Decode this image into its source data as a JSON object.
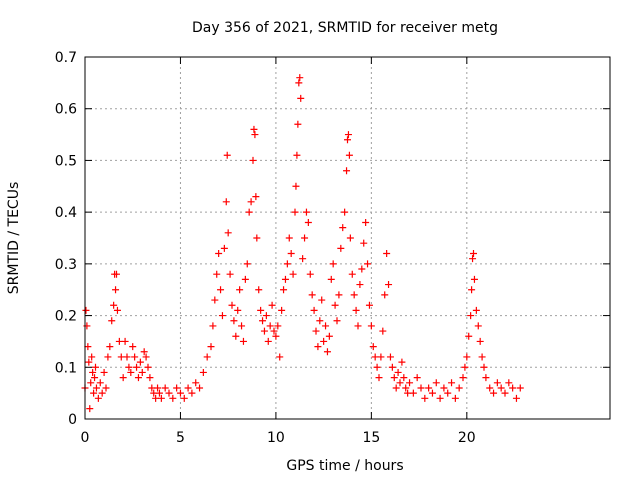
{
  "chart_data": {
    "type": "scatter",
    "title": "Day 356 of 2021, SRMTID for receiver metg",
    "xlabel": "GPS time / hours",
    "ylabel": "SRMTID / TECUs",
    "xlim": [
      0,
      27.5
    ],
    "ylim": [
      0,
      0.7
    ],
    "xticks": [
      0,
      5,
      10,
      15,
      20
    ],
    "xtick_labels": [
      "0",
      "5",
      "10",
      "15",
      "20"
    ],
    "yticks": [
      0,
      0.1,
      0.2,
      0.3,
      0.4,
      0.5,
      0.6,
      0.7
    ],
    "ytick_labels": [
      "0",
      "0.1",
      "0.2",
      "0.3",
      "0.4",
      "0.5",
      "0.6",
      "0.7"
    ],
    "grid": true,
    "marker": "+",
    "series": [
      {
        "name": "SRMTID",
        "color": "#ff0000",
        "points": [
          [
            0.0,
            0.06
          ],
          [
            0.05,
            0.21
          ],
          [
            0.1,
            0.18
          ],
          [
            0.15,
            0.14
          ],
          [
            0.2,
            0.11
          ],
          [
            0.25,
            0.02
          ],
          [
            0.3,
            0.07
          ],
          [
            0.35,
            0.12
          ],
          [
            0.4,
            0.09
          ],
          [
            0.45,
            0.05
          ],
          [
            0.5,
            0.08
          ],
          [
            0.55,
            0.1
          ],
          [
            0.6,
            0.06
          ],
          [
            0.7,
            0.04
          ],
          [
            0.8,
            0.07
          ],
          [
            0.9,
            0.05
          ],
          [
            1.0,
            0.09
          ],
          [
            1.1,
            0.06
          ],
          [
            1.2,
            0.12
          ],
          [
            1.3,
            0.14
          ],
          [
            1.4,
            0.19
          ],
          [
            1.5,
            0.22
          ],
          [
            1.55,
            0.28
          ],
          [
            1.6,
            0.25
          ],
          [
            1.65,
            0.28
          ],
          [
            1.7,
            0.21
          ],
          [
            1.8,
            0.15
          ],
          [
            1.9,
            0.12
          ],
          [
            2.0,
            0.08
          ],
          [
            2.1,
            0.15
          ],
          [
            2.2,
            0.12
          ],
          [
            2.3,
            0.1
          ],
          [
            2.4,
            0.09
          ],
          [
            2.5,
            0.14
          ],
          [
            2.6,
            0.12
          ],
          [
            2.7,
            0.1
          ],
          [
            2.8,
            0.08
          ],
          [
            2.9,
            0.11
          ],
          [
            3.0,
            0.09
          ],
          [
            3.1,
            0.13
          ],
          [
            3.2,
            0.12
          ],
          [
            3.3,
            0.1
          ],
          [
            3.4,
            0.08
          ],
          [
            3.5,
            0.06
          ],
          [
            3.6,
            0.05
          ],
          [
            3.7,
            0.04
          ],
          [
            3.8,
            0.06
          ],
          [
            3.9,
            0.05
          ],
          [
            4.0,
            0.04
          ],
          [
            4.2,
            0.06
          ],
          [
            4.4,
            0.05
          ],
          [
            4.6,
            0.04
          ],
          [
            4.8,
            0.06
          ],
          [
            5.0,
            0.05
          ],
          [
            5.2,
            0.04
          ],
          [
            5.4,
            0.06
          ],
          [
            5.6,
            0.05
          ],
          [
            5.8,
            0.07
          ],
          [
            6.0,
            0.06
          ],
          [
            6.2,
            0.09
          ],
          [
            6.4,
            0.12
          ],
          [
            6.6,
            0.14
          ],
          [
            6.7,
            0.18
          ],
          [
            6.8,
            0.23
          ],
          [
            6.9,
            0.28
          ],
          [
            7.0,
            0.32
          ],
          [
            7.1,
            0.25
          ],
          [
            7.2,
            0.2
          ],
          [
            7.3,
            0.33
          ],
          [
            7.4,
            0.42
          ],
          [
            7.45,
            0.51
          ],
          [
            7.5,
            0.36
          ],
          [
            7.6,
            0.28
          ],
          [
            7.7,
            0.22
          ],
          [
            7.8,
            0.19
          ],
          [
            7.9,
            0.16
          ],
          [
            8.0,
            0.21
          ],
          [
            8.1,
            0.25
          ],
          [
            8.2,
            0.18
          ],
          [
            8.3,
            0.15
          ],
          [
            8.4,
            0.27
          ],
          [
            8.5,
            0.3
          ],
          [
            8.6,
            0.4
          ],
          [
            8.7,
            0.42
          ],
          [
            8.8,
            0.5
          ],
          [
            8.85,
            0.56
          ],
          [
            8.9,
            0.55
          ],
          [
            8.95,
            0.43
          ],
          [
            9.0,
            0.35
          ],
          [
            9.1,
            0.25
          ],
          [
            9.2,
            0.21
          ],
          [
            9.3,
            0.19
          ],
          [
            9.4,
            0.17
          ],
          [
            9.5,
            0.2
          ],
          [
            9.6,
            0.15
          ],
          [
            9.7,
            0.18
          ],
          [
            9.8,
            0.22
          ],
          [
            9.9,
            0.17
          ],
          [
            10.0,
            0.16
          ],
          [
            10.1,
            0.18
          ],
          [
            10.2,
            0.12
          ],
          [
            10.3,
            0.21
          ],
          [
            10.4,
            0.25
          ],
          [
            10.5,
            0.27
          ],
          [
            10.6,
            0.3
          ],
          [
            10.7,
            0.35
          ],
          [
            10.8,
            0.32
          ],
          [
            10.9,
            0.28
          ],
          [
            11.0,
            0.4
          ],
          [
            11.05,
            0.45
          ],
          [
            11.1,
            0.51
          ],
          [
            11.15,
            0.57
          ],
          [
            11.2,
            0.65
          ],
          [
            11.25,
            0.66
          ],
          [
            11.3,
            0.62
          ],
          [
            11.4,
            0.31
          ],
          [
            11.5,
            0.35
          ],
          [
            11.6,
            0.4
          ],
          [
            11.7,
            0.38
          ],
          [
            11.8,
            0.28
          ],
          [
            11.9,
            0.24
          ],
          [
            12.0,
            0.21
          ],
          [
            12.1,
            0.17
          ],
          [
            12.2,
            0.14
          ],
          [
            12.3,
            0.19
          ],
          [
            12.4,
            0.23
          ],
          [
            12.5,
            0.15
          ],
          [
            12.6,
            0.18
          ],
          [
            12.7,
            0.13
          ],
          [
            12.8,
            0.16
          ],
          [
            12.9,
            0.27
          ],
          [
            13.0,
            0.3
          ],
          [
            13.1,
            0.22
          ],
          [
            13.2,
            0.19
          ],
          [
            13.3,
            0.24
          ],
          [
            13.4,
            0.33
          ],
          [
            13.5,
            0.37
          ],
          [
            13.6,
            0.4
          ],
          [
            13.7,
            0.48
          ],
          [
            13.75,
            0.54
          ],
          [
            13.8,
            0.55
          ],
          [
            13.85,
            0.51
          ],
          [
            13.9,
            0.35
          ],
          [
            14.0,
            0.28
          ],
          [
            14.1,
            0.24
          ],
          [
            14.2,
            0.21
          ],
          [
            14.3,
            0.18
          ],
          [
            14.4,
            0.26
          ],
          [
            14.5,
            0.29
          ],
          [
            14.6,
            0.34
          ],
          [
            14.7,
            0.38
          ],
          [
            14.8,
            0.3
          ],
          [
            14.9,
            0.22
          ],
          [
            15.0,
            0.18
          ],
          [
            15.1,
            0.14
          ],
          [
            15.2,
            0.12
          ],
          [
            15.3,
            0.1
          ],
          [
            15.4,
            0.08
          ],
          [
            15.5,
            0.12
          ],
          [
            15.6,
            0.17
          ],
          [
            15.7,
            0.24
          ],
          [
            15.8,
            0.32
          ],
          [
            15.9,
            0.26
          ],
          [
            16.0,
            0.12
          ],
          [
            16.1,
            0.1
          ],
          [
            16.2,
            0.08
          ],
          [
            16.3,
            0.06
          ],
          [
            16.4,
            0.09
          ],
          [
            16.5,
            0.07
          ],
          [
            16.6,
            0.11
          ],
          [
            16.7,
            0.08
          ],
          [
            16.8,
            0.06
          ],
          [
            16.9,
            0.05
          ],
          [
            17.0,
            0.07
          ],
          [
            17.2,
            0.05
          ],
          [
            17.4,
            0.08
          ],
          [
            17.6,
            0.06
          ],
          [
            17.8,
            0.04
          ],
          [
            18.0,
            0.06
          ],
          [
            18.2,
            0.05
          ],
          [
            18.4,
            0.07
          ],
          [
            18.6,
            0.04
          ],
          [
            18.8,
            0.06
          ],
          [
            19.0,
            0.05
          ],
          [
            19.2,
            0.07
          ],
          [
            19.4,
            0.04
          ],
          [
            19.6,
            0.06
          ],
          [
            19.8,
            0.08
          ],
          [
            19.9,
            0.1
          ],
          [
            20.0,
            0.12
          ],
          [
            20.1,
            0.16
          ],
          [
            20.2,
            0.2
          ],
          [
            20.25,
            0.25
          ],
          [
            20.3,
            0.31
          ],
          [
            20.35,
            0.32
          ],
          [
            20.4,
            0.27
          ],
          [
            20.5,
            0.21
          ],
          [
            20.6,
            0.18
          ],
          [
            20.7,
            0.15
          ],
          [
            20.8,
            0.12
          ],
          [
            20.9,
            0.1
          ],
          [
            21.0,
            0.08
          ],
          [
            21.2,
            0.06
          ],
          [
            21.4,
            0.05
          ],
          [
            21.6,
            0.07
          ],
          [
            21.8,
            0.06
          ],
          [
            22.0,
            0.05
          ],
          [
            22.2,
            0.07
          ],
          [
            22.4,
            0.06
          ],
          [
            22.6,
            0.04
          ],
          [
            22.8,
            0.06
          ]
        ]
      }
    ]
  }
}
